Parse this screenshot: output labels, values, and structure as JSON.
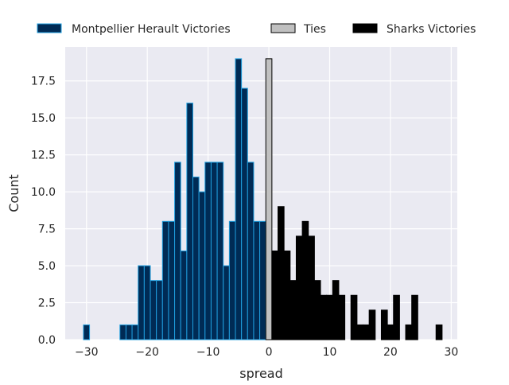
{
  "chart_data": {
    "type": "bar",
    "xlabel": "spread",
    "ylabel": "Count",
    "xlim": [
      -33.5,
      31
    ],
    "ylim": [
      0,
      19.8
    ],
    "x_ticks": [
      -30,
      -20,
      -10,
      0,
      10,
      20,
      30
    ],
    "x_tick_labels": [
      "−30",
      "−20",
      "−10",
      "0",
      "10",
      "20",
      "30"
    ],
    "y_ticks": [
      0,
      2.5,
      5,
      7.5,
      10,
      12.5,
      15,
      17.5
    ],
    "y_tick_labels": [
      "0.0",
      "2.5",
      "5.0",
      "7.5",
      "10.0",
      "12.5",
      "15.0",
      "17.5"
    ],
    "grid": true,
    "legend_position": "top",
    "series": [
      {
        "name": "Montpellier Herault Victories",
        "color": "#002b55",
        "edge_color": "#1f9ede",
        "x": [
          -30,
          -24,
          -23,
          -22,
          -21,
          -20,
          -19,
          -18,
          -17,
          -16,
          -15,
          -14,
          -13,
          -12,
          -11,
          -10,
          -9,
          -8,
          -7,
          -6,
          -5,
          -4,
          -3,
          -2,
          -1
        ],
        "values": [
          1,
          1,
          1,
          1,
          5,
          5,
          4,
          4,
          8,
          8,
          12,
          6,
          16,
          11,
          10,
          12,
          12,
          12,
          5,
          8,
          19,
          17,
          12,
          8,
          8
        ]
      },
      {
        "name": "Ties",
        "color": "#c0c0c0",
        "edge_color": "#000000",
        "x": [
          0
        ],
        "values": [
          19
        ]
      },
      {
        "name": "Sharks Victories",
        "color": "#000000",
        "edge_color": "#000000",
        "x": [
          1,
          2,
          3,
          4,
          5,
          6,
          7,
          8,
          9,
          10,
          11,
          12,
          14,
          15,
          16,
          17,
          19,
          20,
          21,
          23,
          24,
          28
        ],
        "values": [
          6,
          9,
          6,
          4,
          7,
          8,
          7,
          4,
          3,
          3,
          4,
          3,
          3,
          1,
          1,
          2,
          2,
          1,
          3,
          1,
          3,
          1
        ]
      }
    ]
  }
}
